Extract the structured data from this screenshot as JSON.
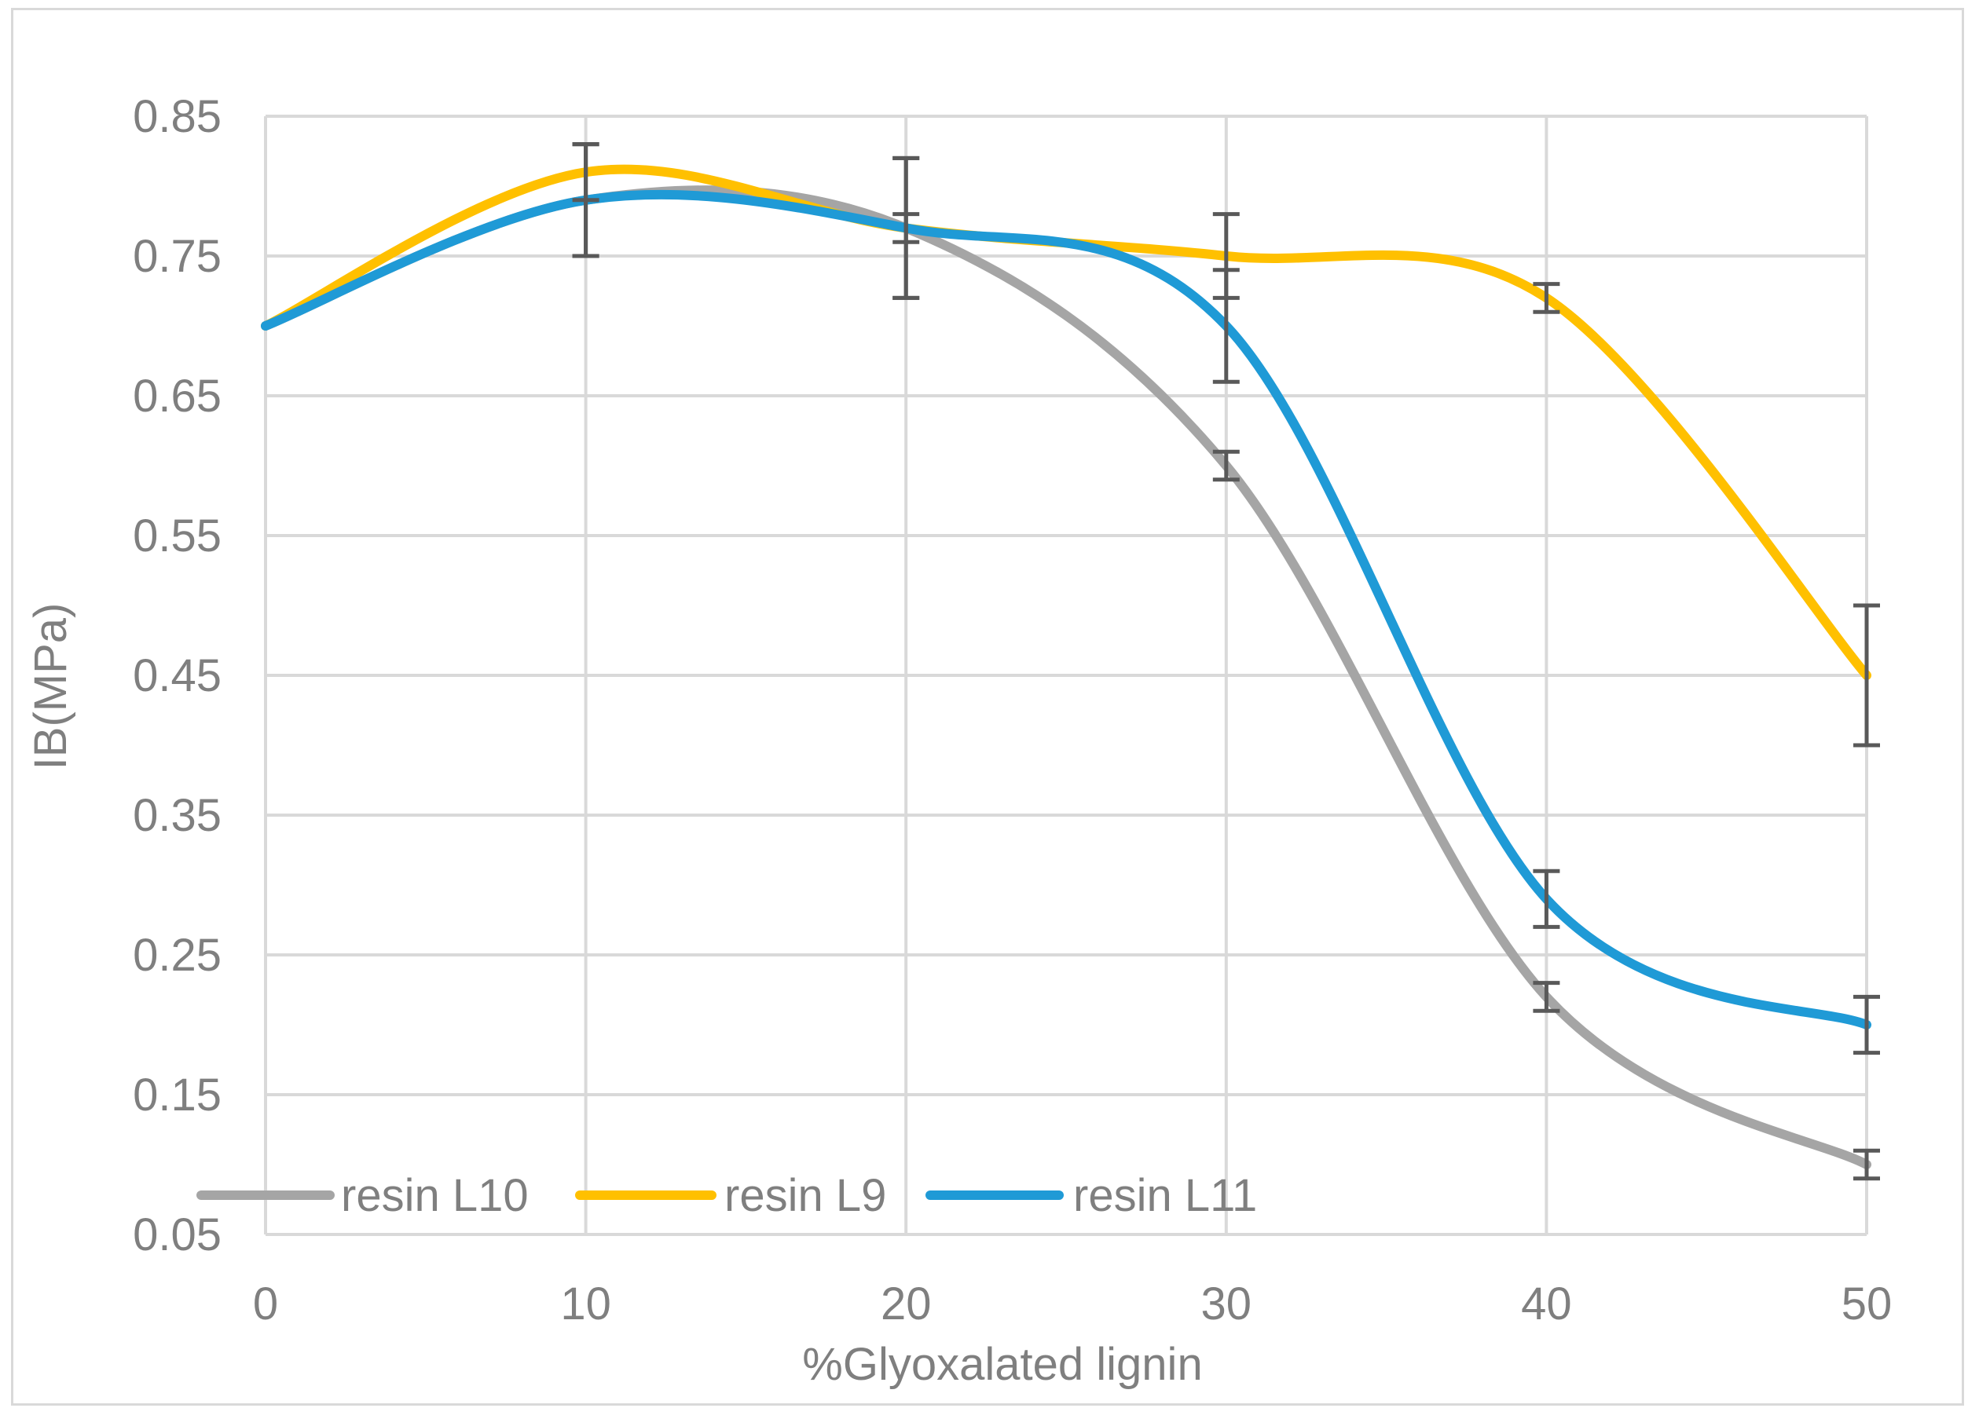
{
  "chart_data": {
    "type": "line",
    "title": "",
    "xlabel": "%Glyoxalated lignin",
    "ylabel": "IB(MPa)",
    "x": [
      0,
      10,
      20,
      30,
      40,
      50
    ],
    "xlim": [
      0,
      50
    ],
    "ylim": [
      0.05,
      0.85
    ],
    "xticks": [
      0,
      10,
      20,
      30,
      40,
      50
    ],
    "yticks": [
      0.05,
      0.15,
      0.25,
      0.35,
      0.45,
      0.55,
      0.65,
      0.75,
      0.85
    ],
    "xtick_labels": [
      "0",
      "10",
      "20",
      "30",
      "40",
      "50"
    ],
    "ytick_labels": [
      "0.05",
      "0.15",
      "0.25",
      "0.35",
      "0.45",
      "0.55",
      "0.65",
      "0.75",
      "0.85"
    ],
    "grid": true,
    "smooth": true,
    "legend_position": "bottom-left",
    "series": [
      {
        "name": "resin L10",
        "color": "#a5a5a5",
        "values": [
          0.7,
          0.79,
          0.77,
          0.6,
          0.22,
          0.1
        ],
        "error": [
          0,
          0.04,
          0.05,
          0.01,
          0.01,
          0.01
        ]
      },
      {
        "name": "resin L9",
        "color": "#ffc000",
        "values": [
          0.7,
          0.81,
          0.77,
          0.75,
          0.72,
          0.45
        ],
        "error": [
          0,
          0.02,
          0.01,
          0.03,
          0.01,
          0.05
        ]
      },
      {
        "name": "resin L11",
        "color": "#1f9ad6",
        "values": [
          0.7,
          0.79,
          0.77,
          0.7,
          0.29,
          0.2
        ],
        "error": [
          0,
          0.04,
          0.05,
          0.04,
          0.02,
          0.02
        ]
      }
    ],
    "error_bar_color": "#595959"
  }
}
